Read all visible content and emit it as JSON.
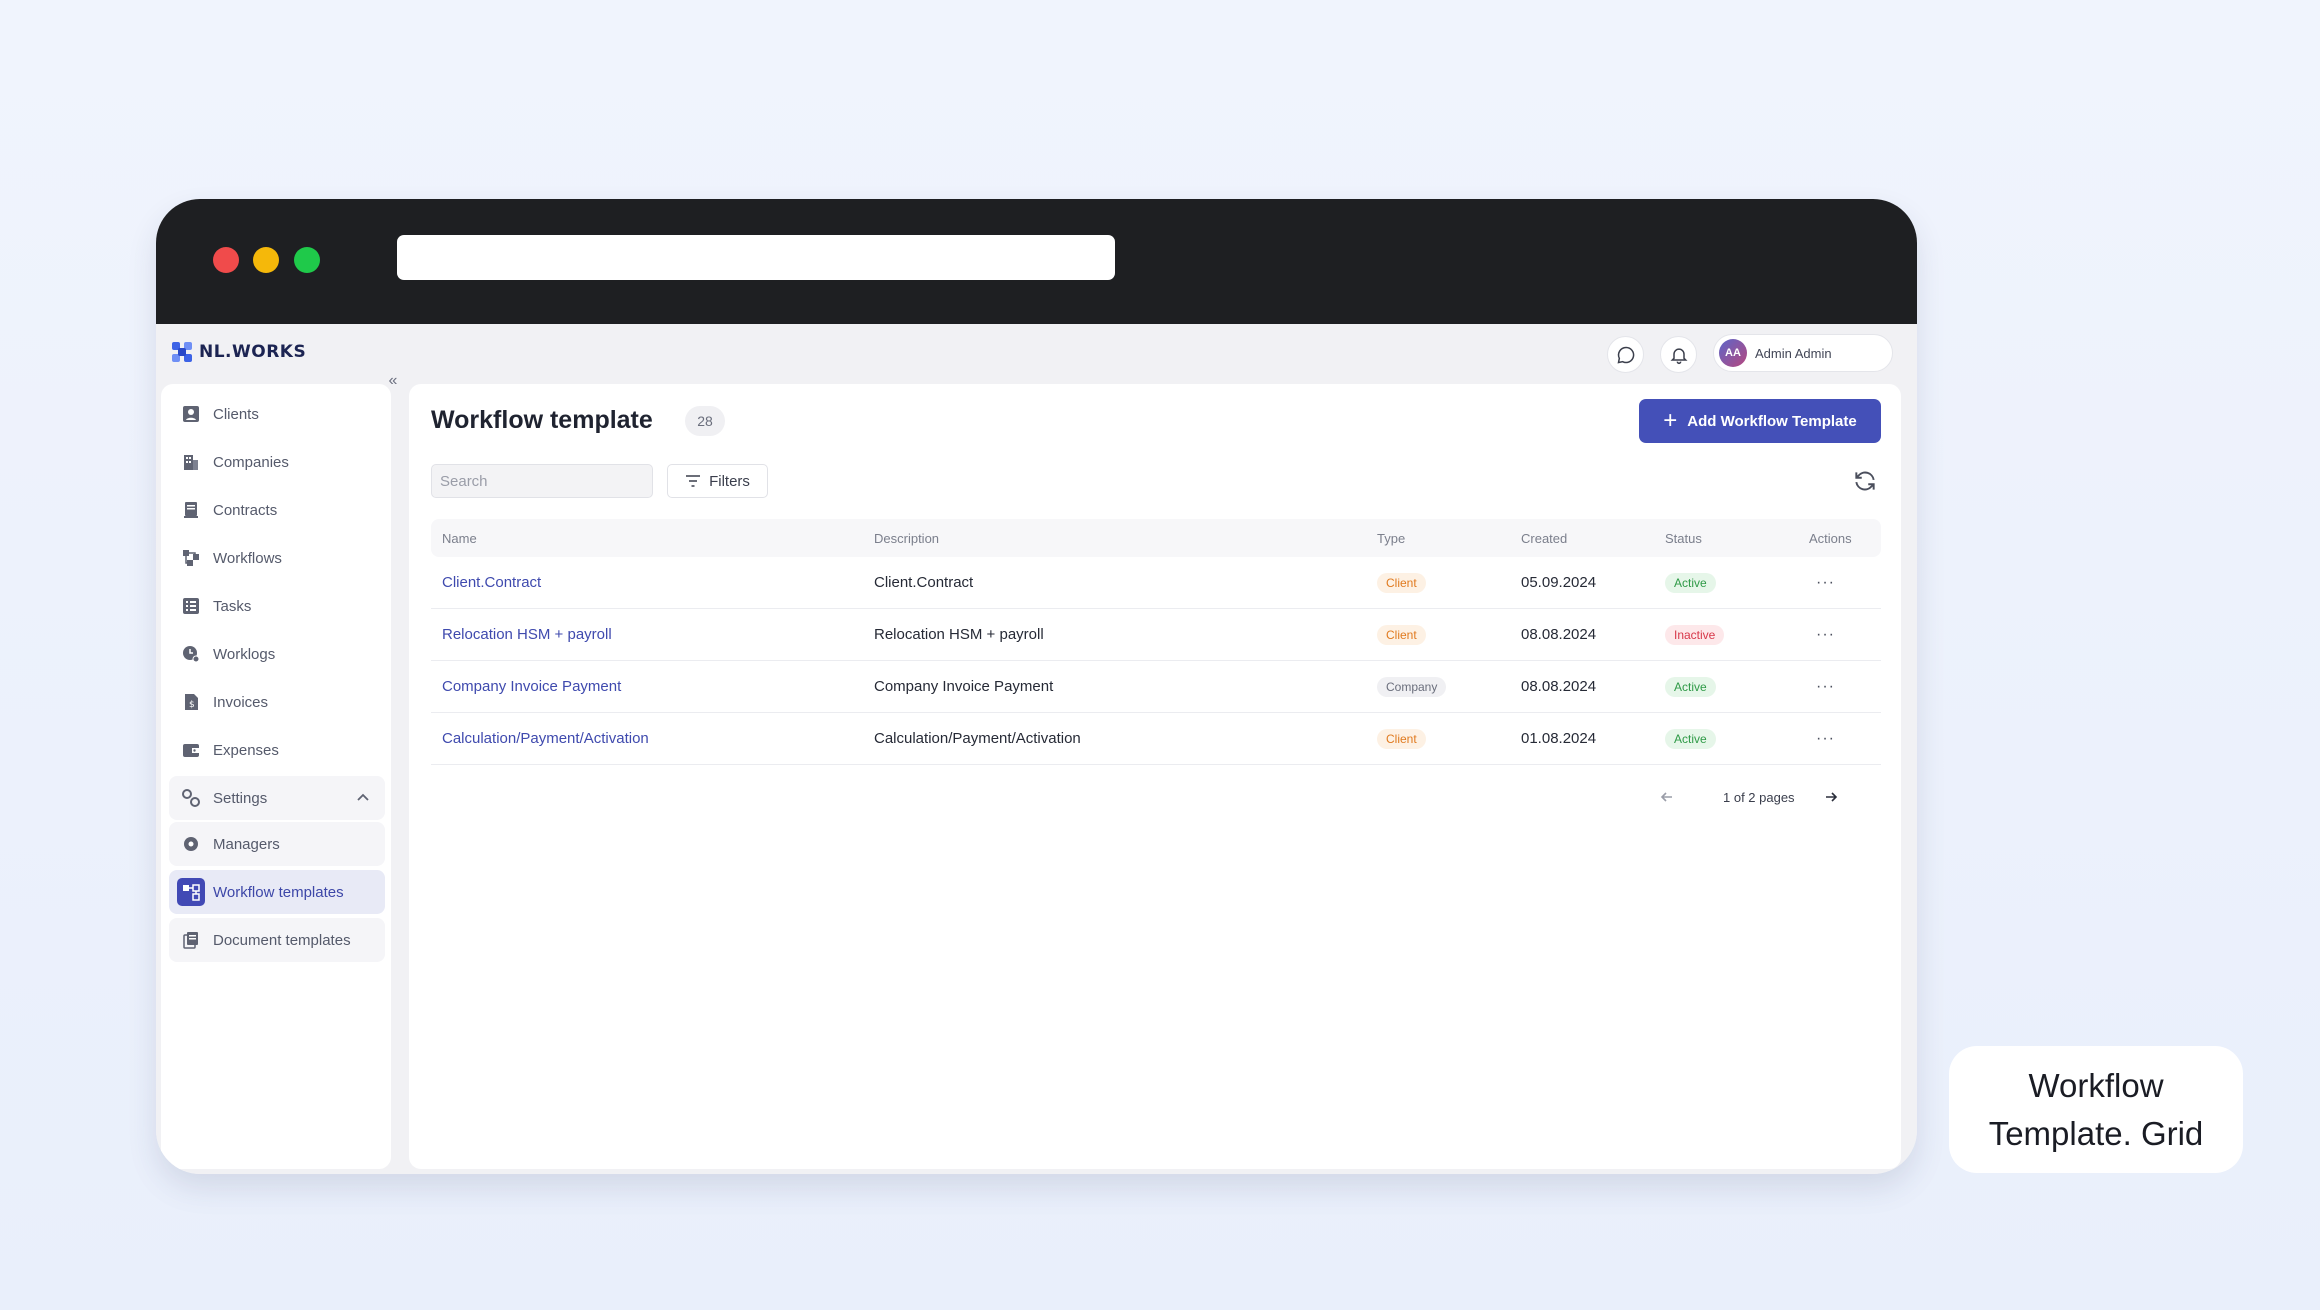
{
  "brand": {
    "name": "NL.WORKS"
  },
  "header": {
    "user_initials": "AA",
    "user_name": "Admin Admin"
  },
  "sidebar": {
    "items": [
      {
        "label": "Clients",
        "icon": "clients-icon"
      },
      {
        "label": "Companies",
        "icon": "companies-icon"
      },
      {
        "label": "Contracts",
        "icon": "contracts-icon"
      },
      {
        "label": "Workflows",
        "icon": "workflows-icon"
      },
      {
        "label": "Tasks",
        "icon": "tasks-icon"
      },
      {
        "label": "Worklogs",
        "icon": "worklogs-icon"
      },
      {
        "label": "Invoices",
        "icon": "invoices-icon"
      },
      {
        "label": "Expenses",
        "icon": "expenses-icon"
      }
    ],
    "settings": {
      "label": "Settings",
      "children": [
        {
          "label": "Managers",
          "icon": "managers-icon"
        },
        {
          "label": "Workflow templates",
          "icon": "workflow-templates-icon",
          "active": true
        },
        {
          "label": "Document templates",
          "icon": "document-templates-icon"
        }
      ]
    }
  },
  "page": {
    "title": "Workflow template",
    "count": "28",
    "add_button": "Add Workflow Template",
    "search_placeholder": "Search",
    "filters_label": "Filters"
  },
  "table": {
    "columns": [
      "Name",
      "Description",
      "Type",
      "Created",
      "Status",
      "Actions"
    ],
    "rows": [
      {
        "name": "Client.Contract",
        "description": "Client.Contract",
        "type": "Client",
        "created": "05.09.2024",
        "status": "Active",
        "actions": "···"
      },
      {
        "name": "Relocation HSM + payroll",
        "description": "Relocation HSM + payroll",
        "type": "Client",
        "created": "08.08.2024",
        "status": "Inactive",
        "actions": "···"
      },
      {
        "name": "Company Invoice Payment",
        "description": "Company Invoice Payment",
        "type": "Company",
        "created": "08.08.2024",
        "status": "Active",
        "actions": "···"
      },
      {
        "name": "Calculation/Payment/Activation",
        "description": "Calculation/Payment/Activation",
        "type": "Client",
        "created": "01.08.2024",
        "status": "Active",
        "actions": "···"
      }
    ]
  },
  "pagination": {
    "label": "1 of 2 pages"
  },
  "caption": {
    "line1": "Workflow",
    "line2": "Template. Grid"
  },
  "colors": {
    "accent": "#4450b8",
    "link": "#3f4aae",
    "client_badge": "#e07a1f",
    "active_badge": "#2f9a47",
    "inactive_badge": "#d73749"
  }
}
